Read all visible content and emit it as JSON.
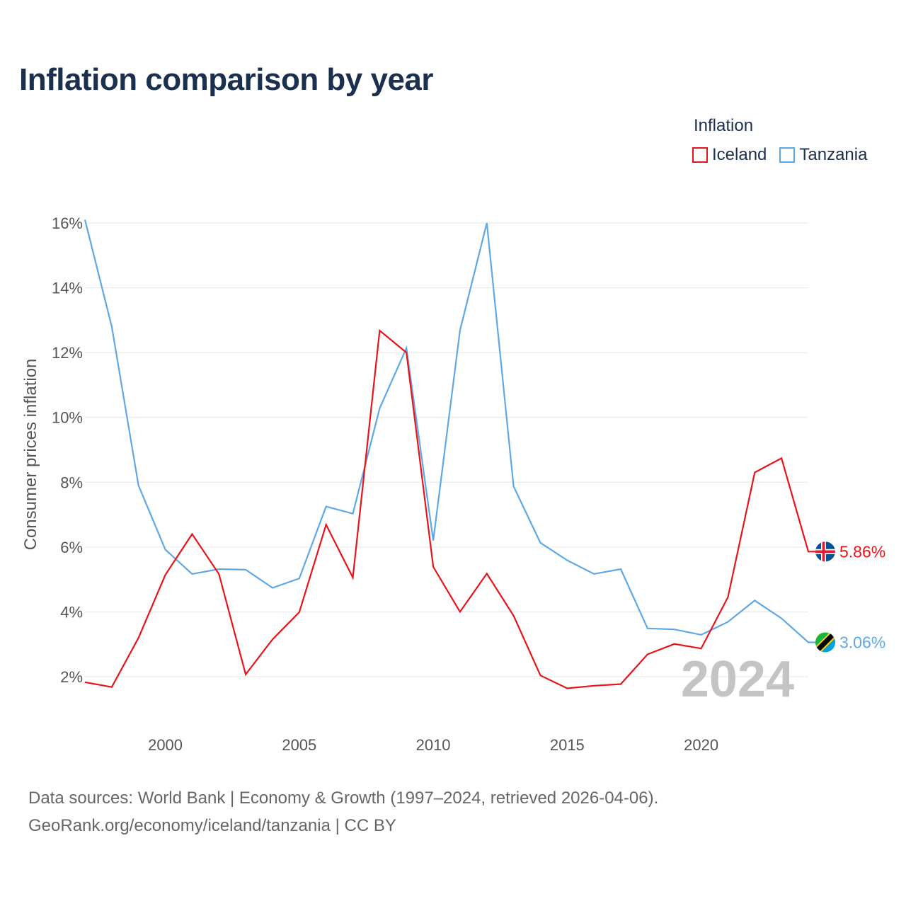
{
  "title": "Inflation comparison by year",
  "legend": {
    "title": "Inflation",
    "items": [
      {
        "name": "Iceland",
        "color": "#e8141b"
      },
      {
        "name": "Tanzania",
        "color": "#5fa8e6"
      }
    ]
  },
  "source": {
    "line1": "Data sources: World Bank | Economy & Growth (1997–2024, retrieved 2026-04-06).",
    "line2": "GeoRank.org/economy/iceland/tanzania | CC BY"
  },
  "chart_data": {
    "type": "line",
    "title": "Inflation comparison by year",
    "xlabel": "",
    "ylabel": "Consumer prices inflation",
    "x": [
      1997,
      1998,
      1999,
      2000,
      2001,
      2002,
      2003,
      2004,
      2005,
      2006,
      2007,
      2008,
      2009,
      2010,
      2011,
      2012,
      2013,
      2014,
      2015,
      2016,
      2017,
      2018,
      2019,
      2020,
      2021,
      2022,
      2023,
      2024
    ],
    "xlim": [
      1997,
      2024
    ],
    "ylim": [
      1,
      16.2
    ],
    "xticks": [
      2000,
      2005,
      2010,
      2015,
      2020
    ],
    "yticks": [
      2,
      4,
      6,
      8,
      10,
      12,
      14,
      16
    ],
    "ytick_labels": [
      "2%",
      "4%",
      "6%",
      "8%",
      "10%",
      "12%",
      "14%",
      "16%"
    ],
    "grid": true,
    "legend_position": "top-right",
    "year_watermark": "2024",
    "series": [
      {
        "name": "Iceland",
        "color": "#e8141b",
        "values": [
          1.83,
          1.68,
          3.2,
          5.14,
          6.4,
          5.17,
          2.07,
          3.15,
          3.99,
          6.69,
          5.06,
          12.68,
          12.0,
          5.39,
          4.0,
          5.18,
          3.88,
          2.04,
          1.64,
          1.72,
          1.77,
          2.69,
          3.01,
          2.87,
          4.45,
          8.3,
          8.74,
          5.86
        ],
        "end_label": "5.86%"
      },
      {
        "name": "Tanzania",
        "color": "#5fa8e6",
        "values": [
          16.1,
          12.8,
          7.9,
          5.92,
          5.17,
          5.32,
          5.3,
          4.74,
          5.03,
          7.25,
          7.03,
          10.28,
          12.14,
          6.2,
          12.69,
          16.0,
          7.87,
          6.13,
          5.59,
          5.17,
          5.32,
          3.49,
          3.46,
          3.29,
          3.69,
          4.35,
          3.8,
          3.06
        ],
        "end_label": "3.06%"
      }
    ]
  }
}
